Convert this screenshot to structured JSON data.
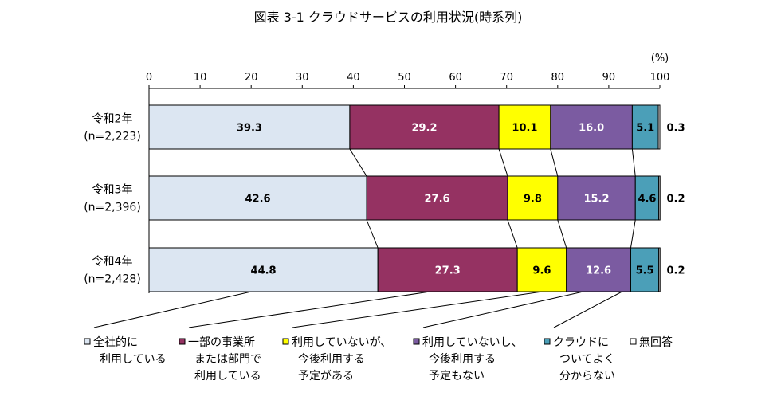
{
  "chart_data": {
    "type": "bar",
    "orientation": "horizontal-stacked-100",
    "title": "図表 3-1 クラウドサービスの利用状況(時系列)",
    "unit_label": "(%)",
    "xlim": [
      0,
      100
    ],
    "ticks": [
      "0",
      "10",
      "20",
      "30",
      "40",
      "50",
      "60",
      "70",
      "80",
      "90",
      "100"
    ],
    "categories": [
      {
        "year": "令和2年",
        "n": "(n=2,223)"
      },
      {
        "year": "令和3年",
        "n": "(n=2,396)"
      },
      {
        "year": "令和4年",
        "n": "(n=2,428)"
      }
    ],
    "series": [
      {
        "legend": [
          "全社的に",
          "利用している"
        ],
        "values": [
          39.3,
          42.6,
          44.8
        ],
        "labels": [
          "39.3",
          "42.6",
          "44.8"
        ],
        "color": "#dce6f2",
        "text_color": "#000000"
      },
      {
        "legend": [
          "一部の事業所",
          "または部門で",
          "利用している"
        ],
        "values": [
          29.2,
          27.6,
          27.3
        ],
        "labels": [
          "29.2",
          "27.6",
          "27.3"
        ],
        "color": "#953262",
        "text_color": "#ffffff"
      },
      {
        "legend": [
          "利用していないが、",
          "今後利用する",
          "予定がある"
        ],
        "values": [
          10.1,
          9.8,
          9.6
        ],
        "labels": [
          "10.1",
          "9.8",
          "9.6"
        ],
        "color": "#ffff00",
        "text_color": "#000000"
      },
      {
        "legend": [
          "利用していないし、",
          "今後利用する",
          "予定もない"
        ],
        "values": [
          16.0,
          15.2,
          12.6
        ],
        "labels": [
          "16.0",
          "15.2",
          "12.6"
        ],
        "color": "#7b5ba1",
        "text_color": "#ffffff"
      },
      {
        "legend": [
          "クラウドに",
          "ついてよく",
          "分からない"
        ],
        "values": [
          5.1,
          4.6,
          5.5
        ],
        "labels": [
          "5.1",
          "4.6",
          "5.5"
        ],
        "color": "#4b9fb8",
        "text_color": "#000000"
      },
      {
        "legend": [
          "無回答"
        ],
        "values": [
          0.3,
          0.2,
          0.2
        ],
        "labels": [
          "0.3",
          "0.2",
          "0.2"
        ],
        "color": "#ffffff",
        "text_color": "#000000"
      }
    ]
  }
}
